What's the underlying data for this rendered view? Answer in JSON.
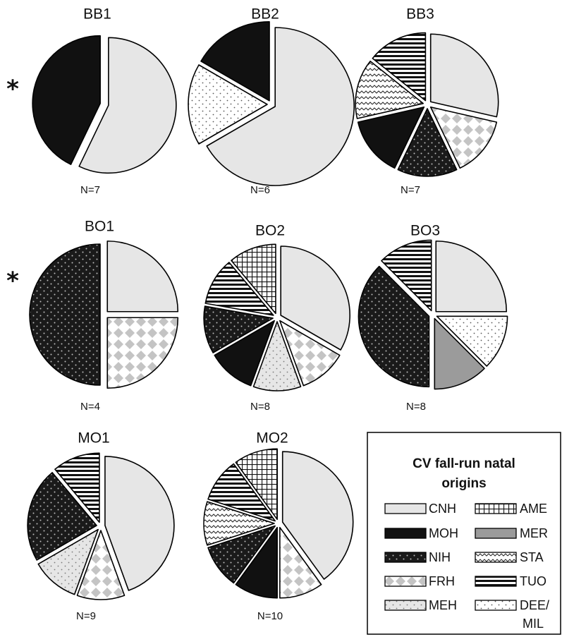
{
  "chart_data": {
    "type": "pie",
    "categories": [
      "CNH",
      "MOH",
      "NIH",
      "FRH",
      "MEH",
      "AME",
      "MER",
      "STA",
      "TUO",
      "DEE/MIL"
    ],
    "category_colors": {
      "CNH": "#e6e6e6",
      "MOH": "#111111",
      "NIH": "#1a1a1a",
      "FRH": "#d0d0d0",
      "MEH": "#e6e6e6",
      "AME": "#ffffff",
      "MER": "#9b9b9b",
      "STA": "#ffffff",
      "TUO": "#ffffff",
      "DEE/MIL": "#ffffff"
    },
    "charts": [
      {
        "title": "BB1",
        "n_label": "N=7",
        "star": "*",
        "slices": [
          {
            "category": "CNH",
            "value": 4
          },
          {
            "category": "MOH",
            "value": 3
          }
        ]
      },
      {
        "title": "BB2",
        "n_label": "N=6",
        "slices": [
          {
            "category": "CNH",
            "value": 4
          },
          {
            "category": "DEE/MIL",
            "value": 1
          },
          {
            "category": "MOH",
            "value": 1
          }
        ]
      },
      {
        "title": "BB3",
        "n_label": "N=7",
        "slices": [
          {
            "category": "CNH",
            "value": 2
          },
          {
            "category": "FRH",
            "value": 1
          },
          {
            "category": "NIH",
            "value": 1
          },
          {
            "category": "MOH",
            "value": 1
          },
          {
            "category": "STA",
            "value": 1
          },
          {
            "category": "TUO",
            "value": 1
          }
        ]
      },
      {
        "title": "BO1",
        "n_label": "N=4",
        "star": "*",
        "slices": [
          {
            "category": "CNH",
            "value": 1
          },
          {
            "category": "FRH",
            "value": 1
          },
          {
            "category": "NIH",
            "value": 2
          }
        ]
      },
      {
        "title": "BO2",
        "n_label": "N=8",
        "slices": [
          {
            "category": "CNH",
            "value": 3
          },
          {
            "category": "FRH",
            "value": 1
          },
          {
            "category": "MEH",
            "value": 1
          },
          {
            "category": "MOH",
            "value": 1
          },
          {
            "category": "NIH",
            "value": 1
          },
          {
            "category": "TUO",
            "value": 1
          },
          {
            "category": "AME",
            "value": 1
          }
        ]
      },
      {
        "title": "BO3",
        "n_label": "N=8",
        "slices": [
          {
            "category": "CNH",
            "value": 2
          },
          {
            "category": "DEE/MIL",
            "value": 1
          },
          {
            "category": "MER",
            "value": 1
          },
          {
            "category": "NIH",
            "value": 3
          },
          {
            "category": "TUO",
            "value": 1
          }
        ]
      },
      {
        "title": "MO1",
        "n_label": "N=9",
        "slices": [
          {
            "category": "CNH",
            "value": 4
          },
          {
            "category": "FRH",
            "value": 1
          },
          {
            "category": "MEH",
            "value": 1
          },
          {
            "category": "NIH",
            "value": 2
          },
          {
            "category": "TUO",
            "value": 1
          }
        ]
      },
      {
        "title": "MO2",
        "n_label": "N=10",
        "slices": [
          {
            "category": "CNH",
            "value": 4
          },
          {
            "category": "FRH",
            "value": 1
          },
          {
            "category": "MOH",
            "value": 1
          },
          {
            "category": "NIH",
            "value": 1
          },
          {
            "category": "STA",
            "value": 1
          },
          {
            "category": "TUO",
            "value": 1
          },
          {
            "category": "AME",
            "value": 1
          }
        ]
      }
    ],
    "legend": {
      "title_line1": "CV fall-run natal",
      "title_line2": "origins",
      "placement": "bottom-right",
      "items": [
        {
          "category": "CNH",
          "label": "CNH"
        },
        {
          "category": "AME",
          "label": "AME"
        },
        {
          "category": "MOH",
          "label": "MOH"
        },
        {
          "category": "MER",
          "label": "MER"
        },
        {
          "category": "NIH",
          "label": "NIH"
        },
        {
          "category": "STA",
          "label": "STA"
        },
        {
          "category": "FRH",
          "label": "FRH"
        },
        {
          "category": "TUO",
          "label": "TUO"
        },
        {
          "category": "MEH",
          "label": "MEH"
        },
        {
          "category": "DEE/MIL",
          "label": "DEE/",
          "label2": "MIL"
        }
      ]
    }
  }
}
